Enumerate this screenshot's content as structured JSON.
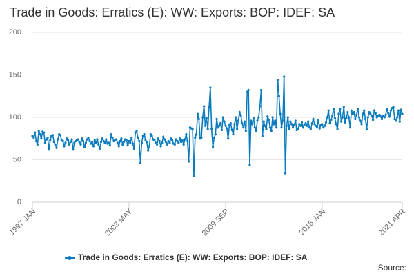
{
  "chart_data": {
    "type": "line",
    "title": "Trade in Goods: Erratics (E): WW: Exports: BOP: IDEF: SA",
    "source": "Source:",
    "categories": [
      "1997 JAN",
      null,
      null,
      null,
      null,
      null,
      null,
      null,
      null,
      null,
      null,
      null,
      null,
      null,
      null,
      null,
      null,
      null,
      null,
      null,
      null,
      null,
      null,
      null,
      null,
      null,
      null,
      null,
      null,
      null,
      null,
      null,
      null,
      null,
      null,
      null,
      null,
      null,
      null,
      null,
      null,
      null,
      null,
      null,
      null,
      null,
      null,
      null,
      null,
      null,
      null,
      null,
      null,
      null,
      null,
      null,
      null,
      null,
      null,
      null,
      null,
      null,
      null,
      null,
      null,
      null,
      null,
      null,
      null,
      null,
      null,
      null,
      null,
      null,
      null,
      null,
      "2003 MAY",
      null,
      null,
      null,
      null,
      null,
      null,
      null,
      null,
      null,
      null,
      null,
      null,
      null,
      null,
      null,
      null,
      null,
      null,
      null,
      null,
      null,
      null,
      null,
      null,
      null,
      null,
      null,
      null,
      null,
      null,
      null,
      null,
      null,
      null,
      null,
      null,
      null,
      null,
      null,
      null,
      null,
      null,
      null,
      null,
      null,
      null,
      null,
      null,
      null,
      null,
      null,
      null,
      null,
      null,
      null,
      null,
      null,
      null,
      null,
      null,
      null,
      null,
      null,
      null,
      null,
      null,
      null,
      null,
      null,
      null,
      null,
      null,
      null,
      null,
      null,
      "2009 SEP",
      null,
      null,
      null,
      null,
      null,
      null,
      null,
      null,
      null,
      null,
      null,
      null,
      null,
      null,
      null,
      null,
      null,
      null,
      null,
      null,
      null,
      null,
      null,
      null,
      null,
      null,
      null,
      null,
      null,
      null,
      null,
      null,
      null,
      null,
      null,
      null,
      null,
      null,
      null,
      null,
      null,
      null,
      null,
      null,
      null,
      null,
      null,
      null,
      null,
      null,
      null,
      null,
      null,
      null,
      null,
      null,
      null,
      null,
      null,
      null,
      null,
      null,
      null,
      null,
      null,
      null,
      null,
      null,
      null,
      null,
      null,
      null,
      null,
      null,
      null,
      "2016 JAN",
      null,
      null,
      null,
      null,
      null,
      null,
      null,
      null,
      null,
      null,
      null,
      null,
      null,
      null,
      null,
      null,
      null,
      null,
      null,
      null,
      null,
      null,
      null,
      null,
      null,
      null,
      null,
      null,
      null,
      null,
      null,
      null,
      null,
      null,
      null,
      null,
      null,
      null,
      null,
      null,
      null,
      null,
      null,
      null,
      null,
      null,
      null,
      null,
      null,
      null,
      null,
      null,
      null,
      null,
      null,
      null,
      null,
      null,
      null,
      null,
      null,
      null,
      "2021 APR"
    ],
    "series": [
      {
        "name": "Trade in Goods: Erratics (E): WW: Exports: BOP: IDEF: SA",
        "color": "#0a7bbd",
        "values": [
          78,
          76,
          82,
          72,
          68,
          84,
          80,
          75,
          83,
          82,
          70,
          74,
          76,
          62,
          73,
          78,
          79,
          71,
          68,
          64,
          74,
          80,
          79,
          73,
          72,
          66,
          70,
          75,
          73,
          68,
          71,
          74,
          62,
          70,
          72,
          73,
          74,
          71,
          68,
          75,
          72,
          65,
          70,
          74,
          76,
          72,
          69,
          71,
          66,
          73,
          70,
          74,
          68,
          63,
          71,
          75,
          72,
          70,
          74,
          69,
          70,
          67,
          80,
          76,
          72,
          73,
          74,
          70,
          66,
          72,
          75,
          68,
          71,
          74,
          73,
          67,
          72,
          70,
          76,
          69,
          63,
          82,
          84,
          76,
          72,
          46,
          70,
          78,
          80,
          73,
          71,
          61,
          66,
          80,
          78,
          74,
          73,
          70,
          68,
          75,
          72,
          66,
          70,
          77,
          74,
          71,
          68,
          72,
          70,
          75,
          73,
          69,
          68,
          74,
          72,
          70,
          75,
          71,
          73,
          68,
          74,
          80,
          72,
          48,
          88,
          87,
          86,
          31,
          76,
          80,
          104,
          98,
          75,
          76,
          100,
          113,
          90,
          99,
          86,
          112,
          135,
          86,
          65,
          76,
          80,
          98,
          88,
          90,
          93,
          85,
          100,
          95,
          90,
          87,
          75,
          91,
          93,
          85,
          80,
          92,
          100,
          86,
          96,
          106,
          102,
          93,
          88,
          95,
          84,
          130,
          132,
          44,
          96,
          92,
          99,
          88,
          84,
          96,
          100,
          113,
          132,
          78,
          95,
          90,
          86,
          101,
          97,
          88,
          84,
          100,
          92,
          96,
          88,
          144,
          125,
          104,
          88,
          96,
          148,
          34,
          90,
          100,
          86,
          95,
          92,
          88,
          91,
          96,
          85,
          86,
          92,
          90,
          94,
          88,
          91,
          93,
          90,
          95,
          88,
          86,
          93,
          98,
          92,
          90,
          88,
          97,
          87,
          91,
          92,
          88,
          90,
          94,
          100,
          108,
          93,
          97,
          102,
          110,
          99,
          92,
          86,
          104,
          110,
          95,
          100,
          112,
          94,
          99,
          106,
          100,
          88,
          108,
          104,
          106,
          98,
          103,
          110,
          100,
          96,
          92,
          104,
          108,
          98,
          86,
          100,
          106,
          104,
          102,
          97,
          108,
          105,
          100,
          102,
          103,
          101,
          98,
          102,
          100,
          103,
          110,
          105,
          101,
          108,
          111,
          112,
          98,
          96,
          100,
          108,
          95,
          109,
          104
        ]
      }
    ],
    "ylim": [
      0,
      200
    ],
    "yticks": [
      0,
      50,
      100,
      150,
      200
    ],
    "grid": true
  }
}
